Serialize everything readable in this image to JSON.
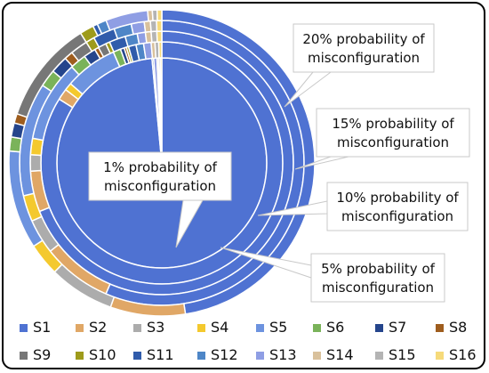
{
  "chart_data": {
    "type": "pie",
    "subtype": "multi-level doughnut",
    "legend_position": "bottom",
    "categories": [
      "S1",
      "S2",
      "S3",
      "S4",
      "S5",
      "S6",
      "S7",
      "S8",
      "S9",
      "S10",
      "S11",
      "S12",
      "S13",
      "S14",
      "S15",
      "S16"
    ],
    "colors": [
      "#4F72D2",
      "#E0A766",
      "#ACACAC",
      "#F4C92E",
      "#6D93DF",
      "#7AB35A",
      "#25458C",
      "#9E5D1E",
      "#777777",
      "#9E9B1B",
      "#305CAB",
      "#4E86C7",
      "#8F9EE4",
      "#D9C19C",
      "#B4B4B4",
      "#F6DA7A"
    ],
    "series": [
      {
        "name": "1% probability of misconfiguration",
        "values": [
          98.5,
          0,
          0,
          0,
          0,
          0,
          0,
          0,
          0,
          0,
          0.25,
          0,
          0.5,
          0.25,
          0.25,
          0.25
        ]
      },
      {
        "name": "5% probability of misconfiguration",
        "values": [
          83,
          1.5,
          0,
          1,
          7,
          1,
          0.5,
          0.3,
          0,
          0.3,
          1,
          1,
          1,
          0.5,
          0.5,
          0.4
        ]
      },
      {
        "name": "10% probability of misconfiguration",
        "values": [
          69,
          5,
          2,
          2,
          10,
          2,
          1.5,
          0.5,
          1,
          0.5,
          2,
          1.5,
          1,
          0.7,
          0.7,
          0.6
        ]
      },
      {
        "name": "15% probability of misconfiguration",
        "values": [
          57,
          8,
          4,
          3,
          13,
          2,
          2,
          1,
          2,
          1,
          2.5,
          2,
          1.5,
          0.7,
          0.7,
          0.6
        ]
      },
      {
        "name": "20% probability of misconfiguration",
        "values": [
          48,
          8,
          7,
          3.5,
          10.5,
          1.5,
          1.5,
          1,
          11,
          1.5,
          0.5,
          1,
          4.5,
          0.5,
          0.5,
          0.5
        ]
      }
    ],
    "callouts": [
      "20% probability of misconfiguration",
      "15% probability of misconfiguration",
      "10% probability of misconfiguration",
      "1% probability of misconfiguration",
      "5% probability of misconfiguration"
    ]
  }
}
